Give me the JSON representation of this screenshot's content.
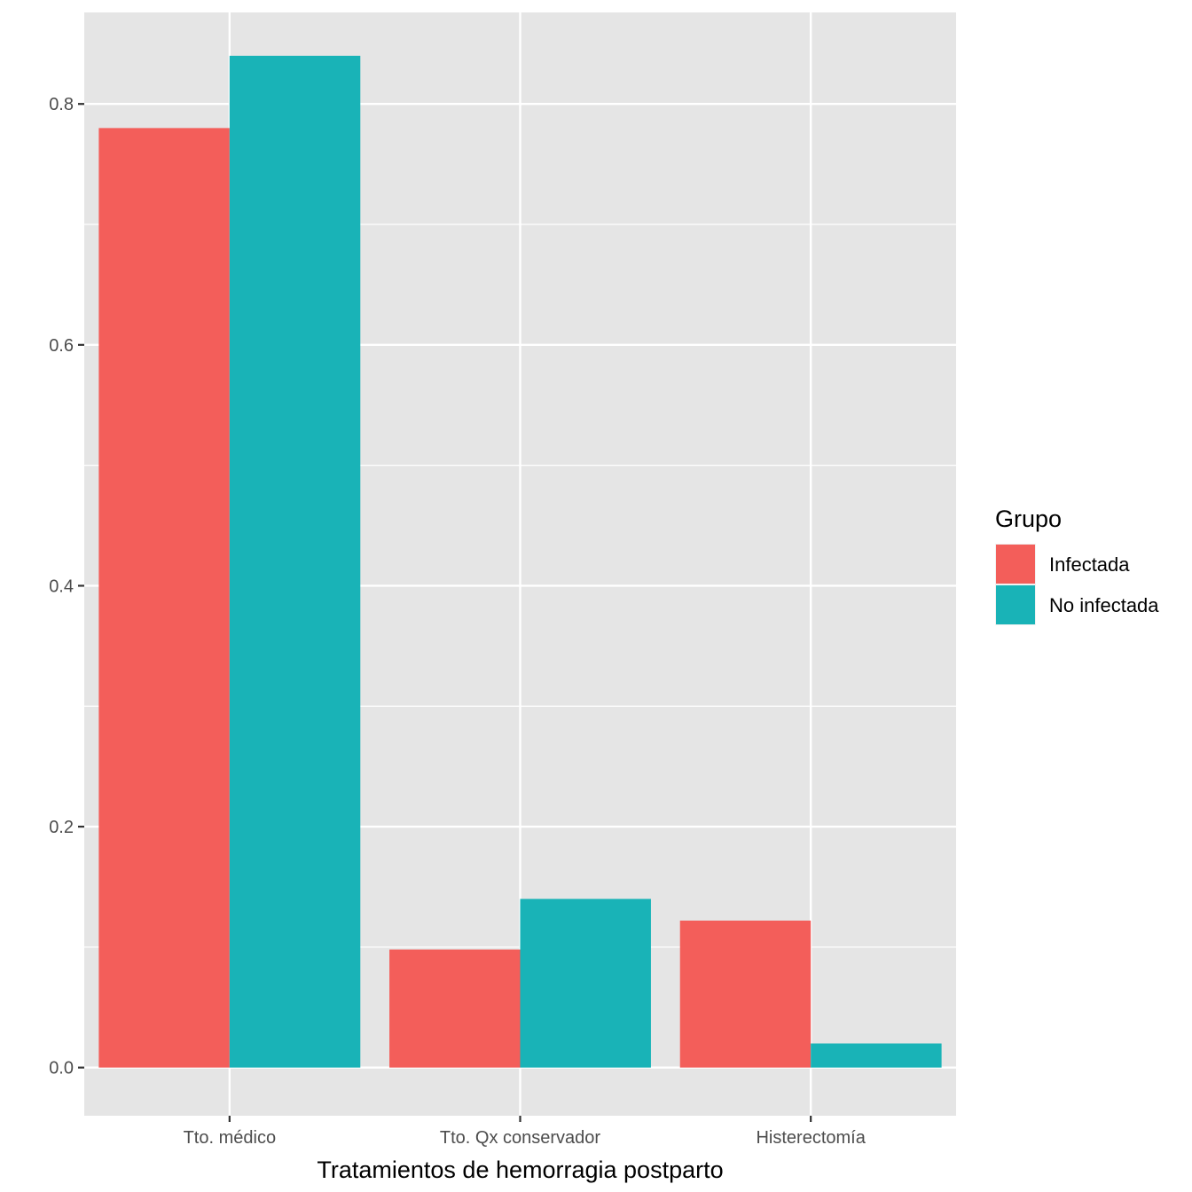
{
  "chart_data": {
    "type": "bar",
    "title": "",
    "xlabel": "Tratamientos de hemorragia postparto",
    "ylabel": "",
    "categories": [
      "Tto. médico",
      "Tto. Qx conservador",
      "Histerectomía"
    ],
    "series": [
      {
        "name": "Infectada",
        "color": "#F35E5A",
        "values": [
          0.78,
          0.098,
          0.122
        ]
      },
      {
        "name": "No infectada",
        "color": "#19B3B7",
        "values": [
          0.84,
          0.14,
          0.02
        ]
      }
    ],
    "ylim": [
      -0.04,
      0.876
    ],
    "yticks": [
      0.0,
      0.2,
      0.4,
      0.6,
      0.8
    ],
    "ytick_labels": [
      "0.0",
      "0.2",
      "0.4",
      "0.6",
      "0.8"
    ],
    "grid": true,
    "legend": {
      "title": "Grupo",
      "position": "right"
    },
    "panel_color": "#E5E5E5",
    "grid_color": "#FFFFFF"
  }
}
